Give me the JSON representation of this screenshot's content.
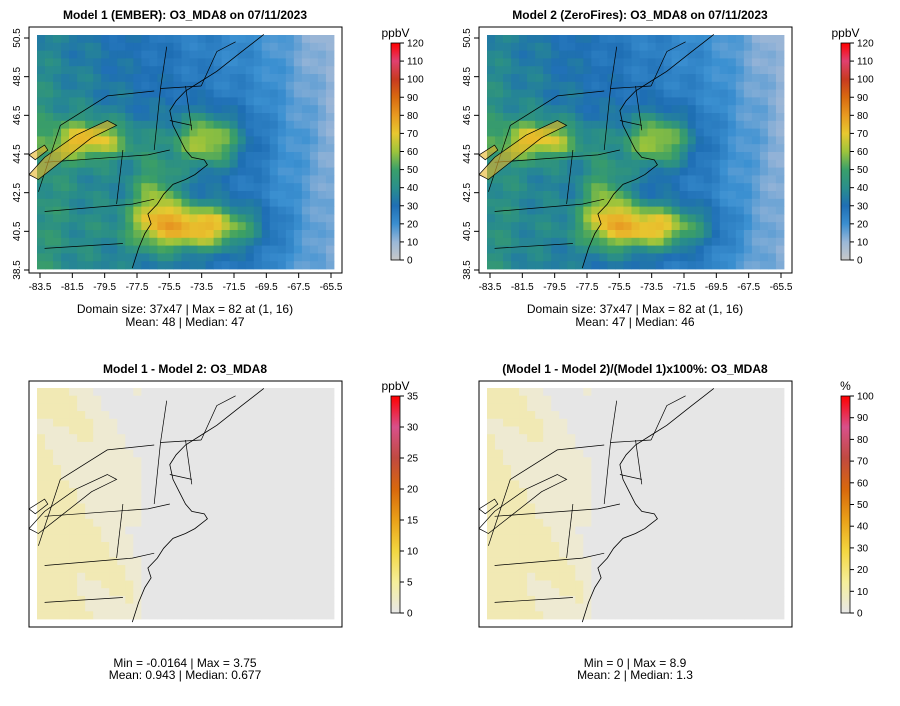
{
  "panels": [
    {
      "title": "Model 1 (EMBER): O3_MDA8 on 07/11/2023",
      "stats_line1": "Domain size: 37x47 | Max = 82 at (1, 16)",
      "stats_line2": "Mean: 48 |  Median: 47",
      "unit": "ppbV",
      "colorbar_ticks": [
        "0",
        "10",
        "20",
        "30",
        "40",
        "50",
        "60",
        "70",
        "80",
        "90",
        "100",
        "110",
        "120"
      ],
      "x_ticks": [
        "-83.5",
        "-81.5",
        "-79.5",
        "-77.5",
        "-75.5",
        "-73.5",
        "-71.5",
        "-69.5",
        "-67.5",
        "-65.5"
      ],
      "y_ticks": [
        "38.5",
        "40.5",
        "42.5",
        "44.5",
        "46.5",
        "48.5",
        "50.5"
      ]
    },
    {
      "title": "Model 2 (ZeroFires): O3_MDA8 on 07/11/2023",
      "stats_line1": "Domain size: 37x47 | Max = 82 at (1, 16)",
      "stats_line2": "Mean: 47 |  Median: 46",
      "unit": "ppbV",
      "colorbar_ticks": [
        "0",
        "10",
        "20",
        "30",
        "40",
        "50",
        "60",
        "70",
        "80",
        "90",
        "100",
        "110",
        "120"
      ],
      "x_ticks": [
        "-83.5",
        "-81.5",
        "-79.5",
        "-77.5",
        "-75.5",
        "-73.5",
        "-71.5",
        "-69.5",
        "-67.5",
        "-65.5"
      ],
      "y_ticks": [
        "38.5",
        "40.5",
        "42.5",
        "44.5",
        "46.5",
        "48.5",
        "50.5"
      ]
    },
    {
      "title": "Model 1 - Model 2: O3_MDA8",
      "stats_line1": "Min = -0.0164 | Max = 3.75",
      "stats_line2": "Mean: 0.943 |  Median: 0.677",
      "unit": "ppbV",
      "colorbar_ticks": [
        "0",
        "5",
        "10",
        "15",
        "20",
        "25",
        "30",
        "35"
      ]
    },
    {
      "title": "(Model 1 - Model 2)/(Model 1)x100%: O3_MDA8",
      "stats_line1": "Min = 0 | Max = 8.9",
      "stats_line2": "Mean: 2 |  Median: 1.3",
      "unit": "%",
      "colorbar_ticks": [
        "0",
        "10",
        "20",
        "30",
        "40",
        "50",
        "60",
        "70",
        "80",
        "90",
        "100"
      ]
    }
  ],
  "colors": {
    "ozone_scale": [
      "#c8c8c8",
      "#9ab8d8",
      "#3a8ed0",
      "#1f6fb4",
      "#2a8f8c",
      "#3aa06a",
      "#9ec43c",
      "#e8c830",
      "#e89a20",
      "#d86a10",
      "#c83a20",
      "#e04070",
      "#ff0000"
    ],
    "diff_scale": [
      "#e8e8e8",
      "#f5ee9a",
      "#f3d640",
      "#e9a018",
      "#d8680c",
      "#c04a40",
      "#d8508a",
      "#ff0000"
    ],
    "diff_background": "#e6e6e6",
    "diff_tint": "#f1ecc8"
  }
}
